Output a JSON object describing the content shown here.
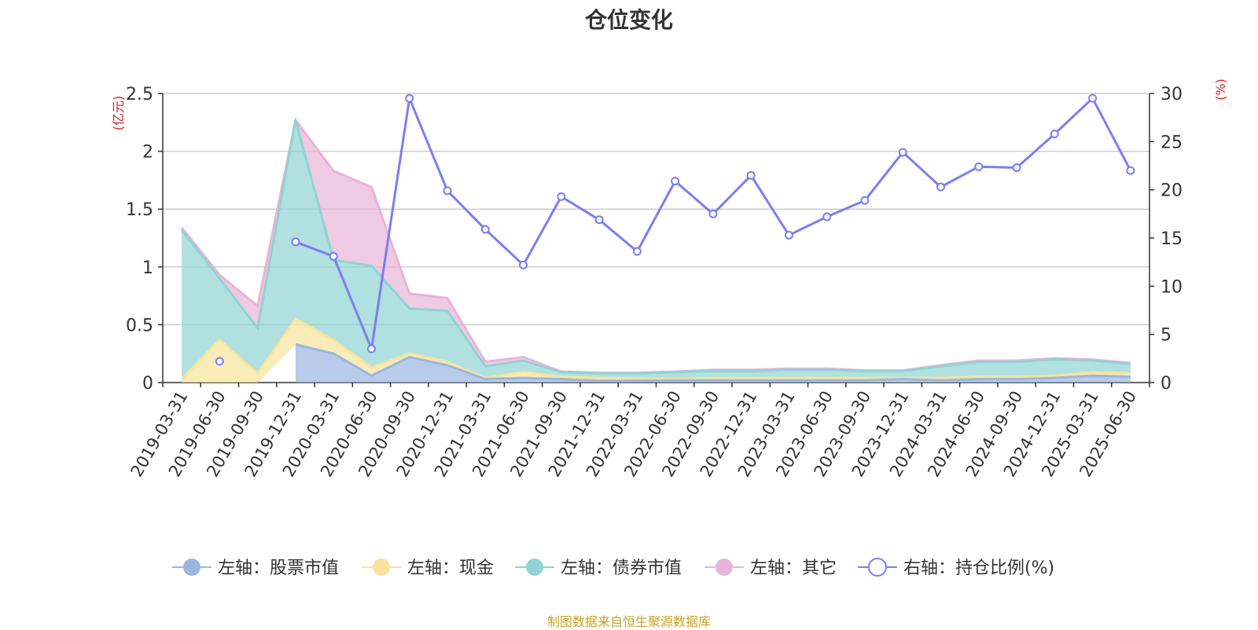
{
  "chart_data": {
    "type": "area",
    "title": "仓位变化",
    "source": "制图数据来自恒生聚源数据库",
    "y_left": {
      "unit": "(亿元)",
      "range": [
        0,
        2.5
      ],
      "ticks": [
        "0",
        "0.5",
        "1",
        "1.5",
        "2",
        "2.5"
      ]
    },
    "y_right": {
      "unit": "(%)",
      "range": [
        0,
        30
      ],
      "ticks": [
        "0",
        "5",
        "10",
        "15",
        "20",
        "25",
        "30"
      ]
    },
    "grid": true,
    "legend_position": "bottom",
    "categories": [
      "2019-03-31",
      "2019-06-30",
      "2019-09-30",
      "2019-12-31",
      "2020-03-31",
      "2020-06-30",
      "2020-09-30",
      "2020-12-31",
      "2021-03-31",
      "2021-06-30",
      "2021-09-30",
      "2021-12-31",
      "2022-03-31",
      "2022-06-30",
      "2022-09-30",
      "2022-12-31",
      "2023-03-31",
      "2023-06-30",
      "2023-09-30",
      "2023-12-31",
      "2024-03-31",
      "2024-06-30",
      "2024-09-30",
      "2024-12-31",
      "2025-03-31",
      "2025-06-30"
    ],
    "series": [
      {
        "name": "左轴：股票市值",
        "axis": "left",
        "kind": "stacked-area",
        "color": "#9ab6e0",
        "values": [
          null,
          null,
          null,
          0.33,
          0.25,
          0.06,
          0.22,
          0.15,
          0.03,
          0.04,
          0.03,
          0.015,
          0.015,
          0.02,
          0.02,
          0.02,
          0.02,
          0.02,
          0.02,
          0.03,
          0.02,
          0.03,
          0.03,
          0.04,
          0.06,
          0.05
        ]
      },
      {
        "name": "左轴：现金",
        "axis": "left",
        "kind": "stacked-area",
        "color": "#f7e49a",
        "values": [
          0.03,
          0.37,
          0.08,
          0.22,
          0.12,
          0.07,
          0.03,
          0.03,
          0.01,
          0.05,
          0.02,
          0.025,
          0.02,
          0.01,
          0.02,
          0.02,
          0.02,
          0.02,
          0.02,
          0.01,
          0.02,
          0.02,
          0.02,
          0.02,
          0.03,
          0.03
        ]
      },
      {
        "name": "左轴：债券市值",
        "axis": "left",
        "kind": "stacked-area",
        "color": "#8fd3d3",
        "values": [
          1.29,
          0.53,
          0.39,
          1.72,
          0.69,
          0.88,
          0.39,
          0.44,
          0.1,
          0.1,
          0.04,
          0.04,
          0.045,
          0.06,
          0.06,
          0.06,
          0.07,
          0.07,
          0.06,
          0.06,
          0.1,
          0.13,
          0.13,
          0.14,
          0.1,
          0.08
        ]
      },
      {
        "name": "左轴：其它",
        "axis": "left",
        "kind": "stacked-area",
        "color": "#e8b4d8",
        "values": [
          0.02,
          0.03,
          0.19,
          0.0,
          0.77,
          0.68,
          0.13,
          0.11,
          0.04,
          0.03,
          0.005,
          0.005,
          0.005,
          0.005,
          0.01,
          0.01,
          0.01,
          0.01,
          0.005,
          0.005,
          0.01,
          0.01,
          0.01,
          0.01,
          0.01,
          0.01
        ]
      },
      {
        "name": "右轴：持仓比例(%)",
        "axis": "right",
        "kind": "line",
        "color": "#7b7ef0",
        "values": [
          null,
          2.2,
          null,
          14.6,
          13.1,
          3.5,
          29.5,
          19.9,
          15.9,
          12.2,
          19.3,
          16.9,
          13.6,
          20.9,
          17.5,
          21.5,
          15.3,
          17.2,
          18.9,
          23.9,
          20.3,
          22.4,
          22.3,
          25.8,
          29.5,
          22.0
        ]
      }
    ]
  }
}
